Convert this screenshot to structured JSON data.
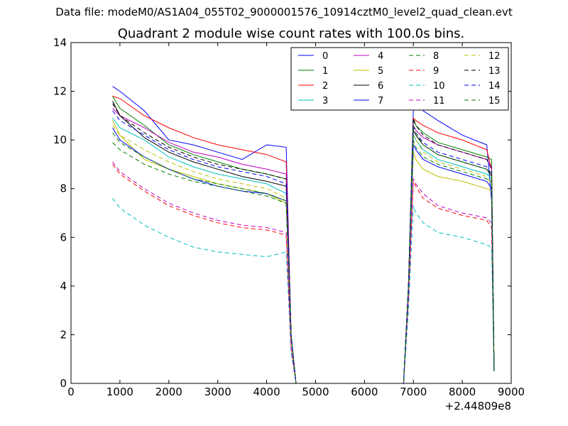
{
  "header": {
    "data_file": "Data file: modeM0/AS1A04_055T02_9000001576_10914cztM0_level2_quad_clean.evt"
  },
  "chart_data": {
    "type": "line",
    "title": "Quadrant 2 module wise count rates with 100.0s bins.",
    "xlabel": "",
    "ylabel": "",
    "xlim": [
      0,
      9000
    ],
    "ylim": [
      0,
      14
    ],
    "x_offset_label": "+2.44809e8",
    "x_ticks": [
      0,
      1000,
      2000,
      3000,
      4000,
      5000,
      6000,
      7000,
      8000,
      9000
    ],
    "x_tick_labels": [
      "0",
      "1000",
      "2000",
      "3000",
      "4000",
      "5000",
      "6000",
      "7000",
      "8000",
      "9000"
    ],
    "y_ticks": [
      0,
      2,
      4,
      6,
      8,
      10,
      12,
      14
    ],
    "y_tick_labels": [
      "0",
      "2",
      "4",
      "6",
      "8",
      "10",
      "12",
      "14"
    ],
    "grid": false,
    "legend_position": "top-right",
    "series": [
      {
        "name": "0",
        "color": "#0000ff",
        "dash": "solid",
        "x": [
          850,
          1000,
          1500,
          2000,
          2500,
          3000,
          3500,
          4000,
          4400,
          4500,
          4600,
          4700,
          5000,
          6000,
          6800,
          6900,
          7000,
          7050,
          7200,
          7500,
          8000,
          8500,
          8600,
          8650
        ],
        "y": [
          12.2,
          12.0,
          11.2,
          10.0,
          9.8,
          9.5,
          9.2,
          9.8,
          9.7,
          2.0,
          0.0,
          0.0,
          0.0,
          0.0,
          0.0,
          4.0,
          11.3,
          11.6,
          11.2,
          10.8,
          10.2,
          9.8,
          7.5,
          0.5
        ]
      },
      {
        "name": "1",
        "color": "#008000",
        "dash": "solid",
        "x": [
          850,
          1000,
          1500,
          2000,
          2500,
          3000,
          3500,
          4000,
          4400,
          4500,
          4600,
          4700,
          5000,
          6000,
          6800,
          6900,
          7000,
          7050,
          7200,
          7500,
          8000,
          8500,
          8600,
          8650
        ],
        "y": [
          11.8,
          11.3,
          10.6,
          9.8,
          9.4,
          9.1,
          8.8,
          8.6,
          8.4,
          2.0,
          0.0,
          0.0,
          0.0,
          0.0,
          0.0,
          4.0,
          10.8,
          10.6,
          10.3,
          9.9,
          9.6,
          9.3,
          9.2,
          0.5
        ]
      },
      {
        "name": "2",
        "color": "#ff0000",
        "dash": "solid",
        "x": [
          850,
          1000,
          1500,
          2000,
          2500,
          3000,
          3500,
          4000,
          4400,
          4500,
          4600,
          4700,
          5000,
          6000,
          6800,
          6900,
          7000,
          7050,
          7200,
          7500,
          8000,
          8500,
          8600,
          8650
        ],
        "y": [
          11.8,
          11.7,
          11.0,
          10.5,
          10.1,
          9.8,
          9.6,
          9.4,
          9.1,
          2.0,
          0.0,
          0.0,
          0.0,
          0.0,
          0.0,
          4.0,
          10.9,
          10.8,
          10.6,
          10.3,
          10.0,
          9.6,
          8.8,
          0.5
        ]
      },
      {
        "name": "3",
        "color": "#00bfbf",
        "dash": "solid",
        "x": [
          850,
          1000,
          1500,
          2000,
          2500,
          3000,
          3500,
          4000,
          4400,
          4500,
          4600,
          4700,
          5000,
          6000,
          6800,
          6900,
          7000,
          7050,
          7200,
          7500,
          8000,
          8500,
          8600,
          8650
        ],
        "y": [
          10.9,
          10.5,
          10.0,
          9.3,
          8.9,
          8.6,
          8.4,
          8.2,
          7.8,
          2.0,
          0.0,
          0.0,
          0.0,
          0.0,
          0.0,
          4.0,
          10.2,
          10.0,
          9.6,
          9.2,
          8.9,
          8.6,
          8.4,
          0.5
        ]
      },
      {
        "name": "4",
        "color": "#bf00bf",
        "dash": "solid",
        "x": [
          850,
          1000,
          1500,
          2000,
          2500,
          3000,
          3500,
          4000,
          4400,
          4500,
          4600,
          4700,
          5000,
          6000,
          6800,
          6900,
          7000,
          7050,
          7200,
          7500,
          8000,
          8500,
          8600,
          8650
        ],
        "y": [
          11.3,
          11.0,
          10.5,
          9.9,
          9.5,
          9.3,
          9.0,
          8.8,
          8.6,
          2.0,
          0.0,
          0.0,
          0.0,
          0.0,
          0.0,
          4.0,
          10.6,
          10.4,
          10.1,
          9.8,
          9.5,
          9.2,
          8.9,
          0.5
        ]
      },
      {
        "name": "5",
        "color": "#bfbf00",
        "dash": "solid",
        "x": [
          850,
          1000,
          1500,
          2000,
          2500,
          3000,
          3500,
          4000,
          4400,
          4500,
          4600,
          4700,
          5000,
          6000,
          6800,
          6900,
          7000,
          7050,
          7200,
          7500,
          8000,
          8500,
          8600,
          8650
        ],
        "y": [
          10.8,
          10.2,
          9.2,
          8.8,
          8.5,
          8.2,
          8.0,
          7.8,
          7.4,
          2.0,
          0.0,
          0.0,
          0.0,
          0.0,
          0.0,
          4.0,
          9.5,
          9.2,
          8.8,
          8.5,
          8.3,
          8.0,
          7.9,
          0.5
        ]
      },
      {
        "name": "6",
        "color": "#000000",
        "dash": "solid",
        "x": [
          850,
          1000,
          1500,
          2000,
          2500,
          3000,
          3500,
          4000,
          4400,
          4500,
          4600,
          4700,
          5000,
          6000,
          6800,
          6900,
          7000,
          7050,
          7200,
          7500,
          8000,
          8500,
          8600,
          8650
        ],
        "y": [
          11.6,
          11.0,
          10.1,
          9.5,
          9.1,
          8.8,
          8.5,
          8.3,
          8.1,
          2.0,
          0.0,
          0.0,
          0.0,
          0.0,
          0.0,
          4.0,
          10.4,
          10.2,
          9.8,
          9.4,
          9.1,
          8.8,
          8.5,
          0.5
        ]
      },
      {
        "name": "7",
        "color": "#0000ff",
        "dash": "solid",
        "x": [
          850,
          1000,
          1500,
          2000,
          2500,
          3000,
          3500,
          4000,
          4400,
          4500,
          4600,
          4700,
          5000,
          6000,
          6800,
          6900,
          7000,
          7050,
          7200,
          7500,
          8000,
          8500,
          8600,
          8650
        ],
        "y": [
          10.5,
          10.0,
          9.3,
          8.8,
          8.4,
          8.1,
          7.9,
          7.8,
          7.5,
          2.0,
          0.0,
          0.0,
          0.0,
          0.0,
          0.0,
          4.0,
          9.8,
          9.6,
          9.2,
          8.9,
          8.6,
          8.3,
          8.0,
          0.5
        ]
      },
      {
        "name": "8",
        "color": "#008000",
        "dash": "dashed",
        "x": [
          850,
          1000,
          1500,
          2000,
          2500,
          3000,
          3500,
          4000,
          4400,
          4500,
          4600,
          4700,
          5000,
          6000,
          6800,
          6900,
          7000,
          7050,
          7200,
          7500,
          8000,
          8500,
          8600,
          8650
        ],
        "y": [
          9.9,
          9.6,
          9.0,
          8.6,
          8.3,
          8.1,
          7.9,
          7.7,
          7.4,
          2.0,
          0.0,
          0.0,
          0.0,
          0.0,
          0.0,
          4.0,
          10.0,
          9.7,
          9.3,
          9.0,
          8.7,
          8.4,
          8.3,
          0.5
        ]
      },
      {
        "name": "9",
        "color": "#ff0000",
        "dash": "dashed",
        "x": [
          850,
          1000,
          1500,
          2000,
          2500,
          3000,
          3500,
          4000,
          4400,
          4500,
          4600,
          4700,
          5000,
          6000,
          6800,
          6900,
          7000,
          7050,
          7200,
          7500,
          8000,
          8500,
          8600,
          8650
        ],
        "y": [
          9.0,
          8.6,
          7.9,
          7.3,
          6.9,
          6.6,
          6.4,
          6.3,
          6.1,
          1.5,
          0.0,
          0.0,
          0.0,
          0.0,
          0.0,
          3.5,
          8.3,
          8.1,
          7.6,
          7.2,
          6.9,
          6.7,
          6.4,
          0.5
        ]
      },
      {
        "name": "10",
        "color": "#00bfbf",
        "dash": "dashed",
        "x": [
          850,
          1000,
          1500,
          2000,
          2500,
          3000,
          3500,
          4000,
          4400,
          4500,
          4600,
          4700,
          5000,
          6000,
          6800,
          6900,
          7000,
          7050,
          7200,
          7500,
          8000,
          8500,
          8600,
          8650
        ],
        "y": [
          7.6,
          7.2,
          6.5,
          6.0,
          5.6,
          5.4,
          5.3,
          5.2,
          5.4,
          1.3,
          0.0,
          0.0,
          0.0,
          0.0,
          0.0,
          3.0,
          7.3,
          7.0,
          6.6,
          6.2,
          6.0,
          5.7,
          5.6,
          0.5
        ]
      },
      {
        "name": "11",
        "color": "#bf00bf",
        "dash": "dashed",
        "x": [
          850,
          1000,
          1500,
          2000,
          2500,
          3000,
          3500,
          4000,
          4400,
          4500,
          4600,
          4700,
          5000,
          6000,
          6800,
          6900,
          7000,
          7050,
          7200,
          7500,
          8000,
          8500,
          8600,
          8650
        ],
        "y": [
          9.1,
          8.7,
          8.0,
          7.4,
          7.0,
          6.7,
          6.5,
          6.4,
          6.2,
          1.5,
          0.0,
          0.0,
          0.0,
          0.0,
          0.0,
          3.5,
          8.4,
          8.2,
          7.8,
          7.3,
          7.0,
          6.8,
          6.6,
          0.5
        ]
      },
      {
        "name": "12",
        "color": "#bfbf00",
        "dash": "dashed",
        "x": [
          850,
          1000,
          1500,
          2000,
          2500,
          3000,
          3500,
          4000,
          4400,
          4500,
          4600,
          4700,
          5000,
          6000,
          6800,
          6900,
          7000,
          7050,
          7200,
          7500,
          8000,
          8500,
          8600,
          8650
        ],
        "y": [
          10.6,
          10.2,
          9.6,
          9.1,
          8.7,
          8.4,
          8.2,
          8.0,
          7.6,
          2.0,
          0.0,
          0.0,
          0.0,
          0.0,
          0.0,
          4.0,
          10.2,
          10.0,
          9.5,
          9.1,
          8.8,
          8.5,
          8.2,
          0.5
        ]
      },
      {
        "name": "13",
        "color": "#000000",
        "dash": "dashed",
        "x": [
          850,
          1000,
          1500,
          2000,
          2500,
          3000,
          3500,
          4000,
          4400,
          4500,
          4600,
          4700,
          5000,
          6000,
          6800,
          6900,
          7000,
          7050,
          7200,
          7500,
          8000,
          8500,
          8600,
          8650
        ],
        "y": [
          11.5,
          11.0,
          10.3,
          9.7,
          9.3,
          9.0,
          8.8,
          8.6,
          8.4,
          2.0,
          0.0,
          0.0,
          0.0,
          0.0,
          0.0,
          4.0,
          10.9,
          10.6,
          10.2,
          9.8,
          9.5,
          9.2,
          8.8,
          0.5
        ]
      },
      {
        "name": "14",
        "color": "#0000ff",
        "dash": "dashed",
        "x": [
          850,
          1000,
          1500,
          2000,
          2500,
          3000,
          3500,
          4000,
          4400,
          4500,
          4600,
          4700,
          5000,
          6000,
          6800,
          6900,
          7000,
          7050,
          7200,
          7500,
          8000,
          8500,
          8600,
          8650
        ],
        "y": [
          11.2,
          10.8,
          10.2,
          9.6,
          9.2,
          8.9,
          8.7,
          8.5,
          8.2,
          2.0,
          0.0,
          0.0,
          0.0,
          0.0,
          0.0,
          4.0,
          10.5,
          10.3,
          9.9,
          9.5,
          9.2,
          8.9,
          8.6,
          0.5
        ]
      },
      {
        "name": "15",
        "color": "#008000",
        "dash": "dashed",
        "x": [
          850,
          1000,
          1500,
          2000,
          2500,
          3000,
          3500,
          4000,
          4400,
          4500,
          4600,
          4700,
          5000,
          6000,
          6800,
          6900,
          7000,
          7050,
          7200,
          7500,
          8000,
          8500,
          8600,
          8650
        ],
        "y": [
          10.3,
          9.9,
          9.3,
          8.8,
          8.4,
          8.2,
          8.0,
          7.8,
          7.5,
          2.0,
          0.0,
          0.0,
          0.0,
          0.0,
          0.0,
          4.0,
          10.6,
          10.3,
          9.8,
          9.4,
          9.1,
          8.8,
          8.6,
          0.5
        ]
      }
    ]
  }
}
